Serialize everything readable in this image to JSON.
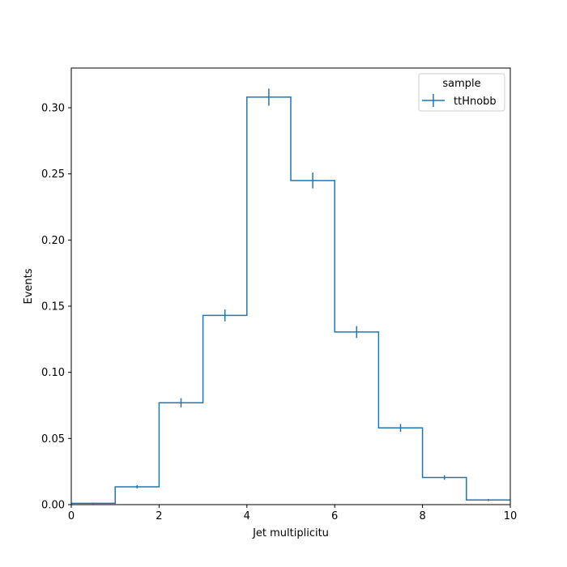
{
  "chart_data": {
    "type": "histogram-step",
    "title": "",
    "xlabel": "Jet multiplicitu",
    "ylabel": "Events",
    "xlim": [
      0,
      10
    ],
    "ylim": [
      0,
      0.33
    ],
    "xticks": [
      "0",
      "2",
      "4",
      "6",
      "8",
      "10"
    ],
    "yticks": [
      "0.00",
      "0.05",
      "0.10",
      "0.15",
      "0.20",
      "0.25",
      "0.30"
    ],
    "grid": false,
    "legend": {
      "title": "sample",
      "placement": "top-right",
      "entries": [
        "ttHnobb"
      ]
    },
    "series": [
      {
        "name": "ttHnobb",
        "color": "#1f77b4",
        "bin_edges": [
          0,
          1,
          2,
          3,
          4,
          5,
          6,
          7,
          8,
          9,
          10
        ],
        "values": [
          0.001,
          0.0135,
          0.077,
          0.143,
          0.308,
          0.245,
          0.1305,
          0.058,
          0.0205,
          0.0035
        ],
        "errors": [
          0.0005,
          0.0012,
          0.0035,
          0.0045,
          0.0065,
          0.006,
          0.0045,
          0.003,
          0.0017,
          0.0008
        ]
      }
    ]
  }
}
